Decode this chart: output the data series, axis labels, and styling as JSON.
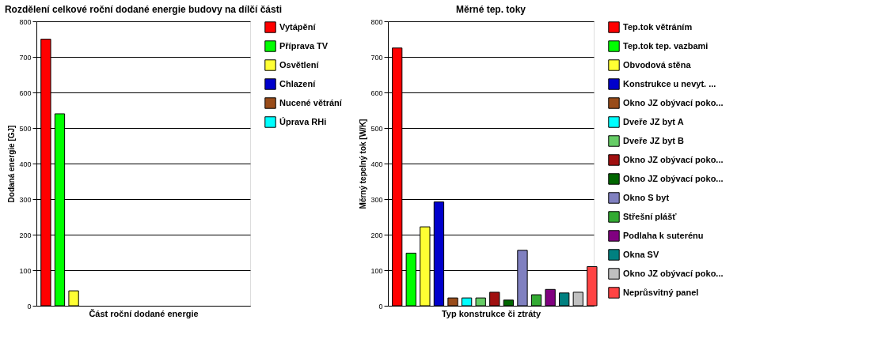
{
  "chart_data": [
    {
      "type": "bar",
      "title": "Rozdělení celkové roční dodané energie budovy na dílčí části",
      "xlabel": "Část roční dodané energie",
      "ylabel": "Dodaná energie  [GJ]",
      "categories": [
        null
      ],
      "ylim": [
        0,
        800
      ],
      "yticks": [
        0,
        100,
        200,
        300,
        400,
        500,
        600,
        700,
        800
      ],
      "grid": "y",
      "legend": "right",
      "series": [
        {
          "name": "Vytápění",
          "color": "#ff0000",
          "values": [
            750
          ]
        },
        {
          "name": "Příprava TV",
          "color": "#00ff00",
          "values": [
            540
          ]
        },
        {
          "name": "Osvětlení",
          "color": "#ffff33",
          "values": [
            42
          ]
        },
        {
          "name": "Chlazení",
          "color": "#0000cc",
          "values": [
            0
          ]
        },
        {
          "name": "Nucené větrání",
          "color": "#994c1a",
          "values": [
            0
          ]
        },
        {
          "name": "Úprava RHi",
          "color": "#00ffff",
          "values": [
            0
          ]
        }
      ]
    },
    {
      "type": "bar",
      "title": "Měrné tep. toky",
      "xlabel": "Typ konstrukce či ztráty",
      "ylabel": "Měrný tepelný tok [W/K]",
      "categories": [
        null
      ],
      "ylim": [
        0,
        800
      ],
      "yticks": [
        0,
        100,
        200,
        300,
        400,
        500,
        600,
        700,
        800
      ],
      "grid": "y",
      "legend": "right",
      "series": [
        {
          "name": "Tep.tok větráním",
          "color": "#ff0000",
          "values": [
            725
          ]
        },
        {
          "name": "Tep.tok tep. vazbami",
          "color": "#00ff00",
          "values": [
            148
          ]
        },
        {
          "name": "Obvodová stěna",
          "color": "#ffff33",
          "values": [
            222
          ]
        },
        {
          "name": "Konstrukce u nevyt. ...",
          "color": "#0000cc",
          "values": [
            292
          ]
        },
        {
          "name": "Okno JZ obývací poko...",
          "color": "#994c1a",
          "values": [
            22
          ]
        },
        {
          "name": "Dveře JZ byt A",
          "color": "#00ffff",
          "values": [
            22
          ]
        },
        {
          "name": "Dveře JZ byt B",
          "color": "#66cc66",
          "values": [
            22
          ]
        },
        {
          "name": "Okno JZ obývací poko...",
          "color": "#a01010",
          "values": [
            38
          ]
        },
        {
          "name": "Okno JZ obývací poko...",
          "color": "#006600",
          "values": [
            16
          ]
        },
        {
          "name": "Okno S byt",
          "color": "#8080c0",
          "values": [
            156
          ]
        },
        {
          "name": "Střešní plášť",
          "color": "#33aa33",
          "values": [
            31
          ]
        },
        {
          "name": "Podlaha k suterénu",
          "color": "#800080",
          "values": [
            46
          ]
        },
        {
          "name": "Okna SV",
          "color": "#008080",
          "values": [
            36
          ]
        },
        {
          "name": "Okno JZ obývací poko...",
          "color": "#c0c0c0",
          "values": [
            38
          ]
        },
        {
          "name": "Neprůsvitný panel",
          "color": "#ff4444",
          "values": [
            110
          ]
        }
      ]
    }
  ]
}
